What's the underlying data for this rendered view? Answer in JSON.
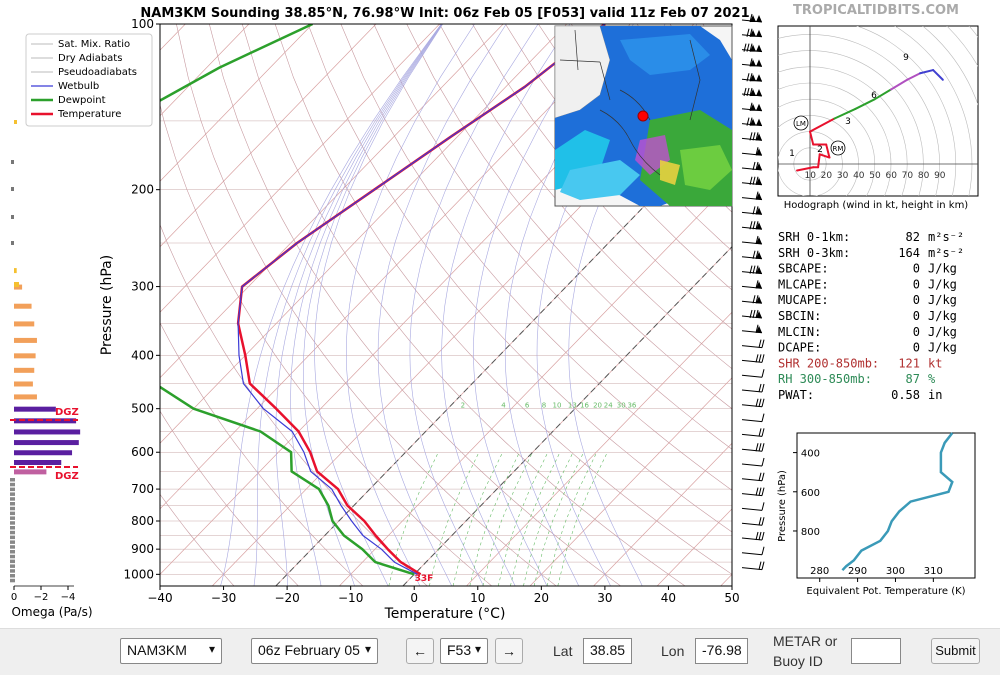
{
  "site": "TROPICALTIDBITS.COM",
  "title": "NAM3KM Sounding 38.85°N, 76.98°W Init: 06z Feb 05 [F053] valid 11z Feb 07 2021",
  "legend": [
    "Sat. Mix. Ratio",
    "Dry Adiabats",
    "Pseudoadiabats",
    "Wetbulb",
    "Dewpoint",
    "Temperature"
  ],
  "colors": {
    "temperature": "#e8112d",
    "dewpoint": "#2ca02c",
    "wetbulb": "#3b3bd6",
    "isotherm": "#d8a0a0",
    "dry_adiabat": "#c79aa0",
    "moist_adiabat": "#a8a8e0",
    "mixing": "#66bb66",
    "dgz": "#e8112d"
  },
  "axes": {
    "ylabel": "Pressure (hPa)",
    "xlabel": "Temperature (°C)",
    "pressure_ticks": [
      "100",
      "200",
      "300",
      "400",
      "500",
      "600",
      "700",
      "800",
      "900",
      "1000"
    ],
    "temp_ticks": [
      "−40",
      "−30",
      "−20",
      "−10",
      "0",
      "10",
      "20",
      "30",
      "40",
      "50"
    ]
  },
  "mixing_labels": [
    "2",
    "4",
    "6",
    "8",
    "10",
    "13",
    "16",
    "20",
    "24",
    "30",
    "36"
  ],
  "surface_label": "33F",
  "dgz_label": "DGZ",
  "omega": {
    "xlabel": "Omega (Pa/s)",
    "ticks": [
      "0",
      "−2",
      "−4"
    ]
  },
  "hodograph": {
    "caption": "Hodograph (wind in kt, height in km)",
    "ticks": [
      "10",
      "20",
      "30",
      "40",
      "50",
      "60",
      "70",
      "80",
      "90"
    ],
    "markers": [
      "LM",
      "RM"
    ],
    "height_labels": [
      "1",
      "2",
      "3",
      "6",
      "9"
    ]
  },
  "indices": [
    {
      "label": "SRH 0-1km:",
      "value": "82",
      "unit": "m²s⁻²",
      "color": "#000"
    },
    {
      "label": "SRH 0-3km:",
      "value": "164",
      "unit": "m²s⁻²",
      "color": "#000"
    },
    {
      "label": "SBCAPE:",
      "value": "0",
      "unit": "J/kg",
      "color": "#000"
    },
    {
      "label": "MLCAPE:",
      "value": "0",
      "unit": "J/kg",
      "color": "#000"
    },
    {
      "label": "MUCAPE:",
      "value": "0",
      "unit": "J/kg",
      "color": "#000"
    },
    {
      "label": "SBCIN:",
      "value": "0",
      "unit": "J/kg",
      "color": "#000"
    },
    {
      "label": "MLCIN:",
      "value": "0",
      "unit": "J/kg",
      "color": "#000"
    },
    {
      "label": "DCAPE:",
      "value": "0",
      "unit": "J/kg",
      "color": "#000"
    },
    {
      "label": "SHR 200-850mb:",
      "value": "121",
      "unit": "kt",
      "color": "#b03030"
    },
    {
      "label": "RH 300-850mb:",
      "value": "87",
      "unit": "%",
      "color": "#2e8b57"
    },
    {
      "label": "PWAT:",
      "value": "0.58",
      "unit": "in",
      "color": "#000"
    }
  ],
  "theta_e": {
    "ylabel": "Pressure (hPa)",
    "xlabel": "Equivalent Pot. Temperature (K)",
    "yticks": [
      "400",
      "600",
      "800"
    ],
    "xticks": [
      "280",
      "290",
      "300",
      "310"
    ]
  },
  "chart_data": {
    "type": "line",
    "temperature": {
      "p": [
        100,
        130,
        160,
        200,
        250,
        300,
        350,
        400,
        450,
        500,
        550,
        600,
        650,
        700,
        750,
        800,
        850,
        900,
        950,
        1000
      ],
      "t": [
        -54,
        -57,
        -61,
        -65,
        -69,
        -71,
        -66,
        -60,
        -55,
        -47,
        -40,
        -35,
        -31,
        -25,
        -21,
        -16,
        -12,
        -8,
        -4,
        1
      ]
    },
    "wetbulb": {
      "p": [
        100,
        130,
        160,
        200,
        250,
        300,
        350,
        400,
        450,
        500,
        550,
        600,
        650,
        700,
        750,
        800,
        850,
        900,
        950,
        1000
      ],
      "t": [
        -54,
        -57,
        -61,
        -65,
        -69,
        -71,
        -66,
        -61,
        -56,
        -49,
        -41,
        -36,
        -32,
        -26,
        -22,
        -18,
        -14,
        -9,
        -5,
        0.5
      ]
    },
    "dewpoint": {
      "p": [
        100,
        120,
        150,
        200,
        250,
        280,
        320,
        400,
        450,
        500,
        550,
        600,
        650,
        700,
        750,
        800,
        850,
        900,
        950,
        1000
      ],
      "t": [
        -100,
        -108,
        -115,
        -105,
        -102,
        -98,
        -90,
        -77,
        -70,
        -60,
        -46,
        -38,
        -35,
        -28,
        -24,
        -21,
        -17,
        -12,
        -8,
        0
      ]
    },
    "xlim": [
      -40,
      50
    ],
    "ylim": [
      1050,
      100
    ],
    "omega": {
      "p": [
        280,
        300,
        325,
        350,
        375,
        400,
        425,
        450,
        475,
        500,
        525,
        550,
        575,
        600,
        625,
        650
      ],
      "v": [
        -0.2,
        -0.6,
        -1.3,
        -1.5,
        -1.7,
        -1.6,
        -1.5,
        -1.4,
        -1.7,
        -3.1,
        -4.6,
        -4.9,
        -4.8,
        -4.3,
        -3.5,
        -2.4
      ]
    },
    "hodograph": {
      "u": [
        -8,
        2,
        5,
        6,
        12,
        10,
        2,
        0,
        15,
        28,
        40,
        50,
        60,
        68,
        76,
        82
      ],
      "v": [
        -4,
        -2,
        -2,
        6,
        4,
        12,
        12,
        20,
        28,
        34,
        40,
        46,
        52,
        56,
        58,
        52
      ]
    },
    "theta_e_profile": {
      "p": [
        1000,
        980,
        950,
        900,
        850,
        800,
        750,
        700,
        650,
        600,
        550,
        500,
        450,
        400,
        350,
        300
      ],
      "k": [
        286,
        287,
        289,
        291,
        296,
        298,
        299,
        301,
        304,
        314,
        315,
        312,
        312,
        312,
        313,
        315
      ]
    }
  },
  "controls": {
    "model": "NAM3KM",
    "init": "06z February 05",
    "forecast": "F53",
    "lat_label": "Lat",
    "lat": "38.85",
    "lon_label": "Lon",
    "lon": "-76.98",
    "metar_label": "METAR or",
    "metar_label2": "Buoy ID",
    "metar_value": "",
    "submit": "Submit",
    "prev_icon": "←",
    "next_icon": "→"
  }
}
